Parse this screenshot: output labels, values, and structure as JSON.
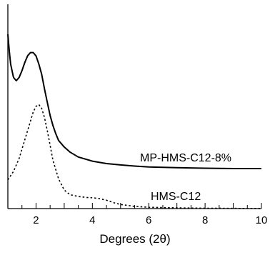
{
  "chart_data": {
    "type": "line",
    "title": "",
    "xlabel": "Degrees (2θ)",
    "ylabel": "",
    "xlim": [
      1,
      10
    ],
    "ylim": [
      0,
      1
    ],
    "x_ticks": [
      "2",
      "4",
      "6",
      "8",
      "10"
    ],
    "y_ticks": [],
    "grid": false,
    "legend": "none",
    "series": [
      {
        "name": "MP-HMS-C12-8%",
        "style": "solid",
        "color": "#000000",
        "x": [
          1.0,
          1.05,
          1.1,
          1.2,
          1.3,
          1.4,
          1.5,
          1.6,
          1.7,
          1.8,
          1.9,
          2.0,
          2.1,
          2.2,
          2.3,
          2.4,
          2.5,
          2.6,
          2.7,
          2.8,
          3.0,
          3.2,
          3.5,
          4.0,
          4.5,
          5.0,
          5.5,
          6.0,
          7.0,
          8.0,
          9.0,
          10.0
        ],
        "y": [
          0.96,
          0.86,
          0.78,
          0.7,
          0.68,
          0.7,
          0.74,
          0.79,
          0.83,
          0.85,
          0.85,
          0.83,
          0.78,
          0.72,
          0.63,
          0.55,
          0.47,
          0.41,
          0.36,
          0.32,
          0.28,
          0.25,
          0.22,
          0.195,
          0.18,
          0.172,
          0.165,
          0.16,
          0.155,
          0.152,
          0.15,
          0.15
        ]
      },
      {
        "name": "HMS-C12",
        "style": "dotted",
        "color": "#000000",
        "x": [
          1.0,
          1.2,
          1.4,
          1.6,
          1.8,
          1.9,
          2.0,
          2.1,
          2.2,
          2.3,
          2.4,
          2.5,
          2.6,
          2.8,
          3.0,
          3.2,
          3.5,
          3.8,
          4.0,
          4.2,
          4.5,
          4.8,
          5.0,
          5.5,
          6.0,
          7.0,
          8.0,
          9.0,
          10.0
        ],
        "y": [
          0.155,
          0.2,
          0.27,
          0.37,
          0.47,
          0.52,
          0.55,
          0.56,
          0.54,
          0.49,
          0.42,
          0.34,
          0.26,
          0.16,
          0.1,
          0.075,
          0.065,
          0.06,
          0.058,
          0.055,
          0.045,
          0.03,
          0.022,
          0.012,
          0.007,
          0.004,
          0.002,
          0.001,
          0.0
        ]
      }
    ],
    "annotations": [
      "MP-HMS-C12-8%",
      "HMS-C12"
    ]
  }
}
